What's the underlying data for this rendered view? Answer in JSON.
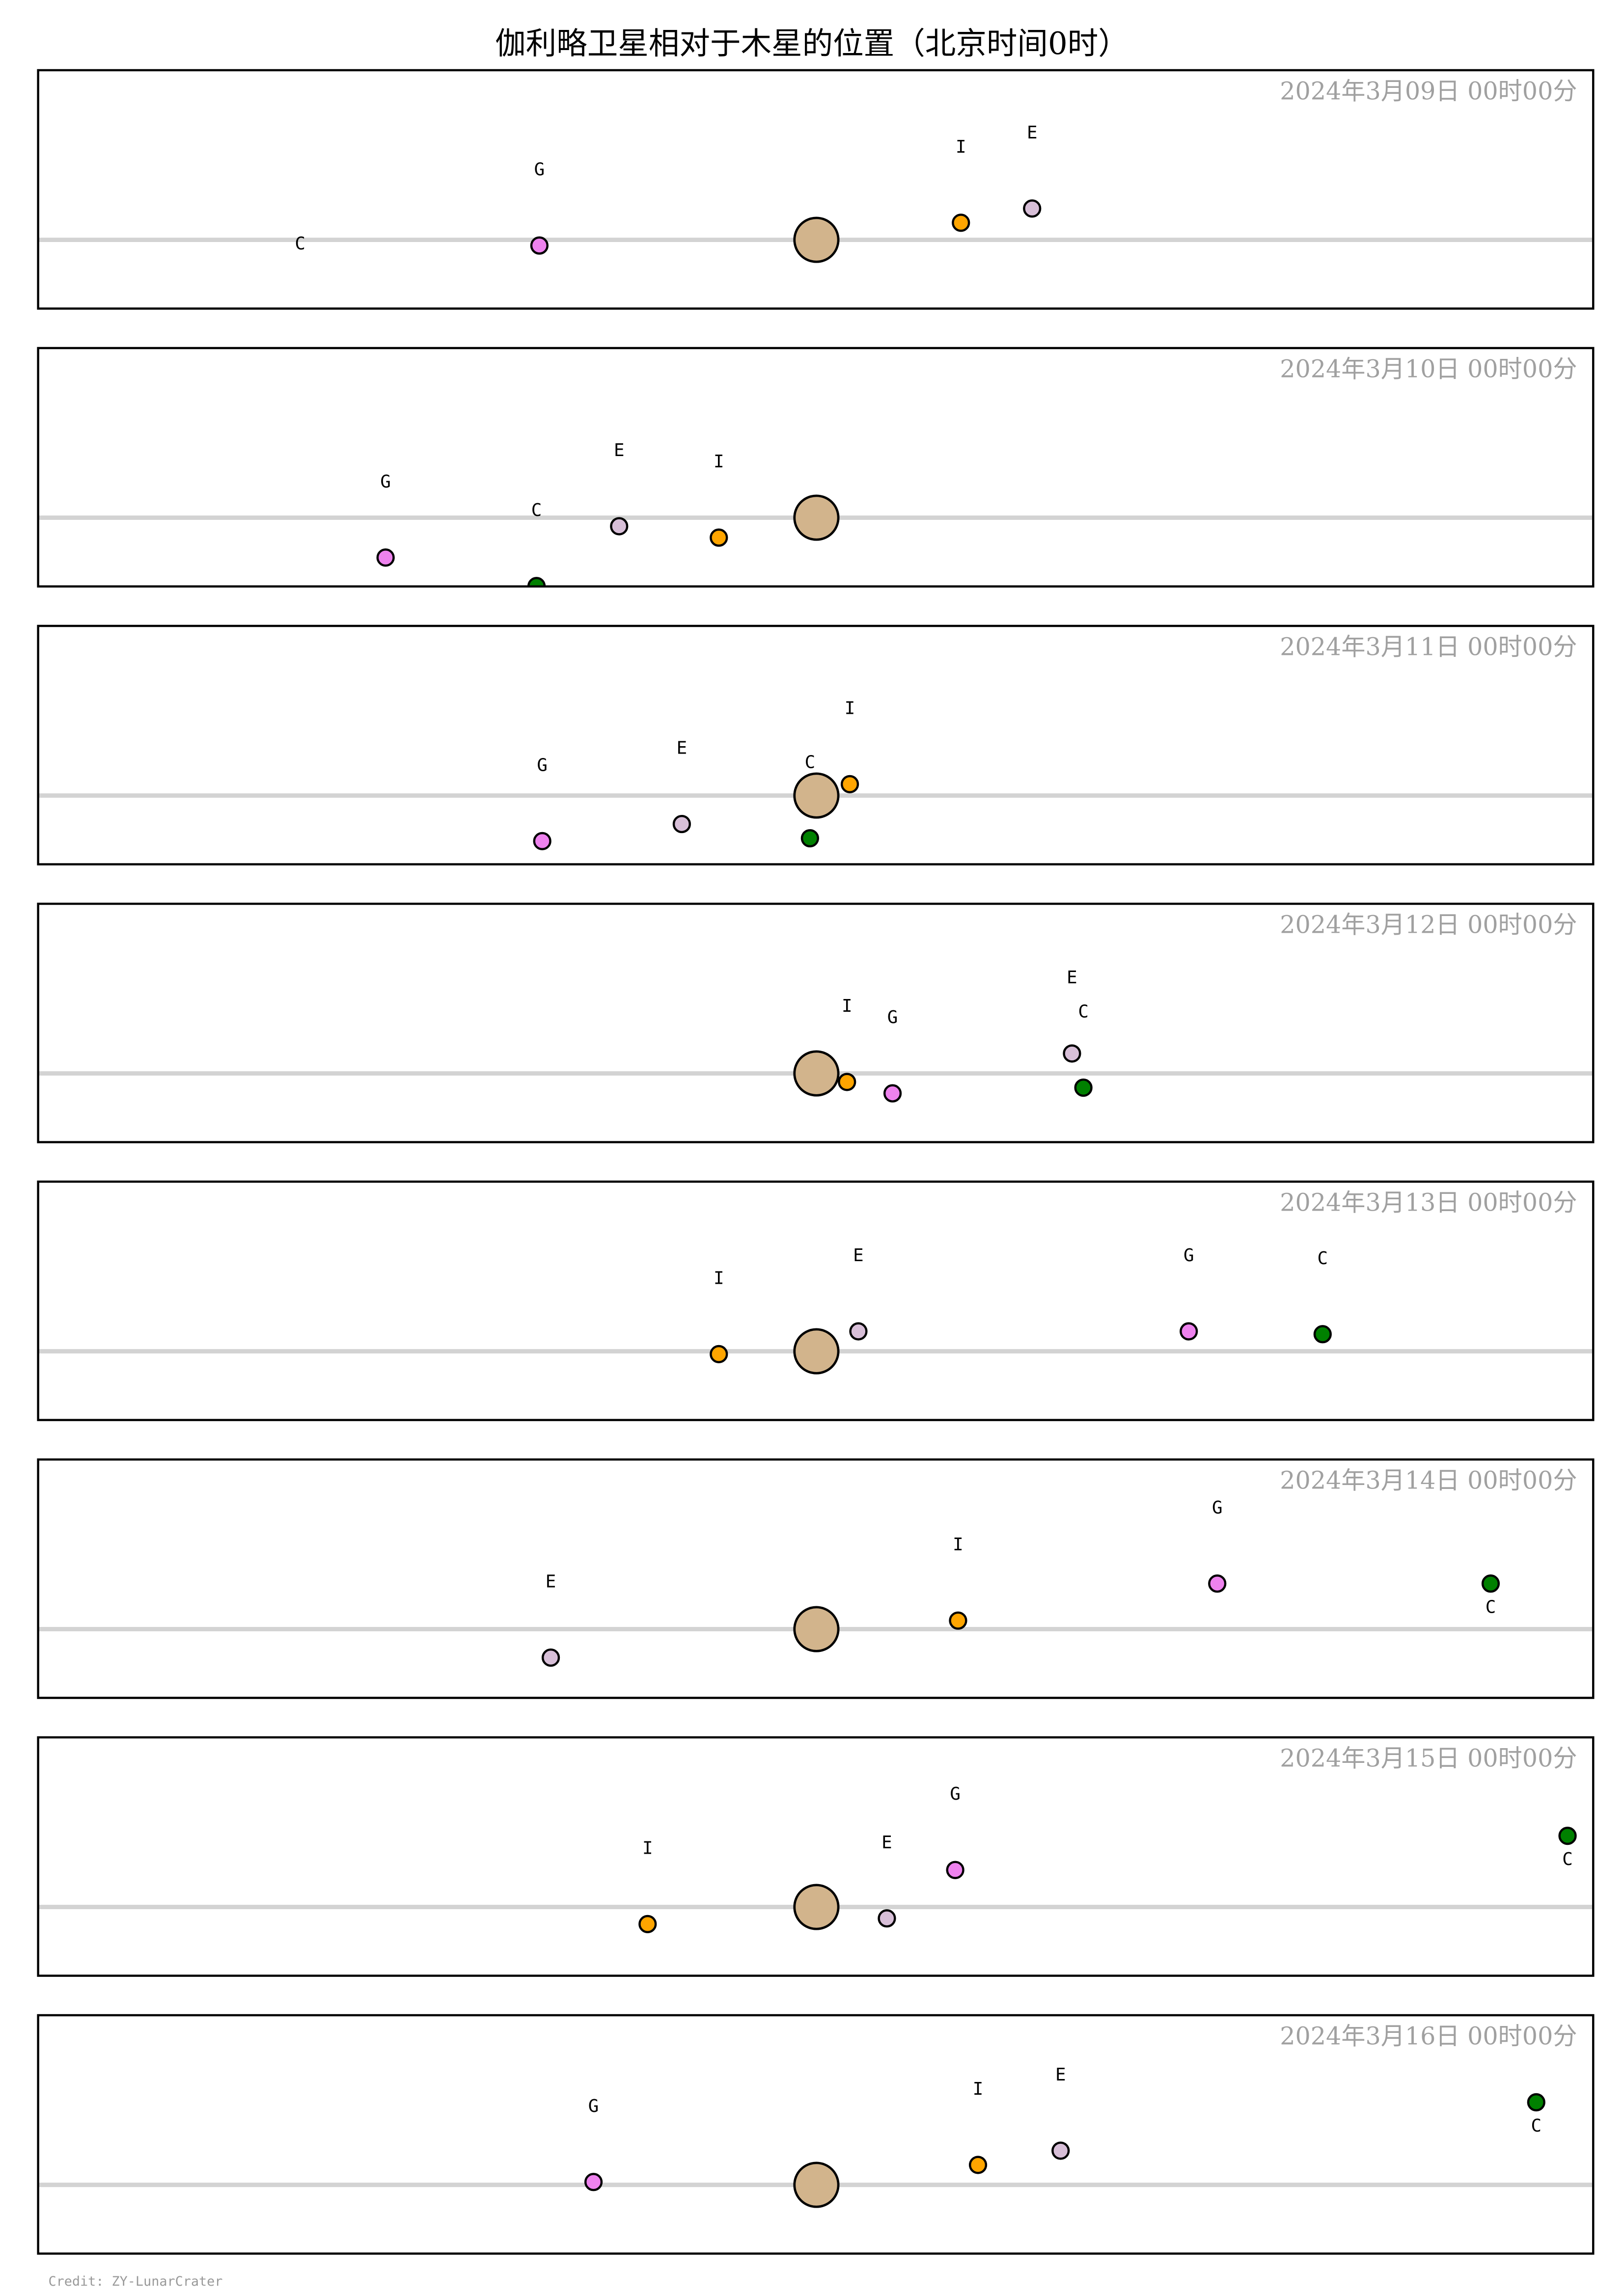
{
  "chart_data": {
    "type": "scatter",
    "title": "伽利略卫星相对于木星的位置（北京时间0时）",
    "credit": "Credit: ZY-LunarCrater",
    "xlim": [
      -27.3,
      27.3
    ],
    "ylim": [
      -2.4,
      6.0
    ],
    "grid": false,
    "center_body": {
      "color": "#D2B48C"
    },
    "moons": {
      "I": {
        "color": "#FFA500"
      },
      "E": {
        "color": "#D8BFD8"
      },
      "G": {
        "color": "#EE82EE"
      },
      "C": {
        "color": "#008000"
      }
    },
    "panels": [
      {
        "date": "2024年3月09日  00时00分",
        "points": [
          {
            "label": "C",
            "x": -18.1,
            "y": -2.8
          },
          {
            "label": "G",
            "x": -9.7,
            "y": -0.2
          },
          {
            "label": "I",
            "x": 5.1,
            "y": 0.6
          },
          {
            "label": "E",
            "x": 7.6,
            "y": 1.1
          }
        ]
      },
      {
        "date": "2024年3月10日  00时00分",
        "points": [
          {
            "label": "G",
            "x": -15.1,
            "y": -1.4
          },
          {
            "label": "C",
            "x": -9.8,
            "y": -2.4
          },
          {
            "label": "E",
            "x": -6.9,
            "y": -0.3
          },
          {
            "label": "I",
            "x": -3.4,
            "y": -0.7
          }
        ]
      },
      {
        "date": "2024年3月11日  00时00分",
        "points": [
          {
            "label": "G",
            "x": -9.6,
            "y": -1.6
          },
          {
            "label": "E",
            "x": -4.7,
            "y": -1.0
          },
          {
            "label": "C",
            "x": -0.2,
            "y": -1.5
          },
          {
            "label": "I",
            "x": 1.2,
            "y": 0.4
          }
        ]
      },
      {
        "date": "2024年3月12日  00时00分",
        "points": [
          {
            "label": "I",
            "x": 1.1,
            "y": -0.3
          },
          {
            "label": "G",
            "x": 2.7,
            "y": -0.7
          },
          {
            "label": "E",
            "x": 9.0,
            "y": 0.7
          },
          {
            "label": "C",
            "x": 9.4,
            "y": -0.5
          }
        ]
      },
      {
        "date": "2024年3月13日  00时00分",
        "points": [
          {
            "label": "I",
            "x": -3.4,
            "y": -0.1
          },
          {
            "label": "E",
            "x": 1.5,
            "y": 0.7
          },
          {
            "label": "G",
            "x": 13.1,
            "y": 0.7
          },
          {
            "label": "C",
            "x": 17.8,
            "y": 0.6
          }
        ]
      },
      {
        "date": "2024年3月14日  00时00分",
        "points": [
          {
            "label": "E",
            "x": -9.3,
            "y": -1.0
          },
          {
            "label": "I",
            "x": 5.0,
            "y": 0.3
          },
          {
            "label": "G",
            "x": 14.1,
            "y": 1.6
          },
          {
            "label": "C",
            "x": 23.7,
            "y": 1.6
          }
        ]
      },
      {
        "date": "2024年3月15日  00时00分",
        "points": [
          {
            "label": "I",
            "x": -5.9,
            "y": -0.6
          },
          {
            "label": "E",
            "x": 2.5,
            "y": -0.4
          },
          {
            "label": "G",
            "x": 4.9,
            "y": 1.3
          },
          {
            "label": "C",
            "x": 26.4,
            "y": 2.5
          }
        ]
      },
      {
        "date": "2024年3月16日  00时00分",
        "points": [
          {
            "label": "G",
            "x": -7.8,
            "y": 0.1
          },
          {
            "label": "I",
            "x": 5.7,
            "y": 0.7
          },
          {
            "label": "E",
            "x": 8.6,
            "y": 1.2
          },
          {
            "label": "C",
            "x": 25.3,
            "y": 2.9
          }
        ]
      }
    ]
  }
}
